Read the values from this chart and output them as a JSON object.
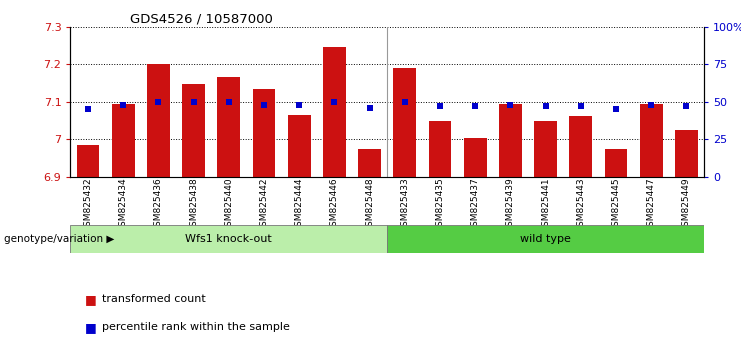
{
  "title": "GDS4526 / 10587000",
  "ylim": [
    6.9,
    7.3
  ],
  "yticks": [
    6.9,
    7.0,
    7.1,
    7.2,
    7.3
  ],
  "ytick_labels": [
    "6.9",
    "7",
    "7.1",
    "7.2",
    "7.3"
  ],
  "y2lim": [
    0,
    100
  ],
  "y2ticks": [
    0,
    25,
    50,
    75,
    100
  ],
  "y2tick_labels": [
    "0",
    "25",
    "50",
    "75",
    "100%"
  ],
  "bar_color": "#cc1111",
  "dot_color": "#0000cc",
  "categories": [
    "GSM825432",
    "GSM825434",
    "GSM825436",
    "GSM825438",
    "GSM825440",
    "GSM825442",
    "GSM825444",
    "GSM825446",
    "GSM825448",
    "GSM825433",
    "GSM825435",
    "GSM825437",
    "GSM825439",
    "GSM825441",
    "GSM825443",
    "GSM825445",
    "GSM825447",
    "GSM825449"
  ],
  "bar_values": [
    6.985,
    7.095,
    7.2,
    7.148,
    7.165,
    7.135,
    7.065,
    7.245,
    6.975,
    7.19,
    7.05,
    7.003,
    7.095,
    7.048,
    7.063,
    6.975,
    7.095,
    7.025
  ],
  "dot_values_pct": [
    45,
    48,
    50,
    50,
    50,
    48,
    48,
    50,
    46,
    50,
    47,
    47,
    48,
    47,
    47,
    45,
    48,
    47
  ],
  "group1_label": "Wfs1 knock-out",
  "group2_label": "wild type",
  "group1_count": 9,
  "group2_count": 9,
  "group1_color": "#bbeeaa",
  "group2_color": "#55cc44",
  "genotype_label": "genotype/variation",
  "legend_bar_label": "transformed count",
  "legend_dot_label": "percentile rank within the sample",
  "left_color": "#cc1111",
  "right_color": "#0000cc",
  "base_value": 6.9,
  "bar_width": 0.65
}
